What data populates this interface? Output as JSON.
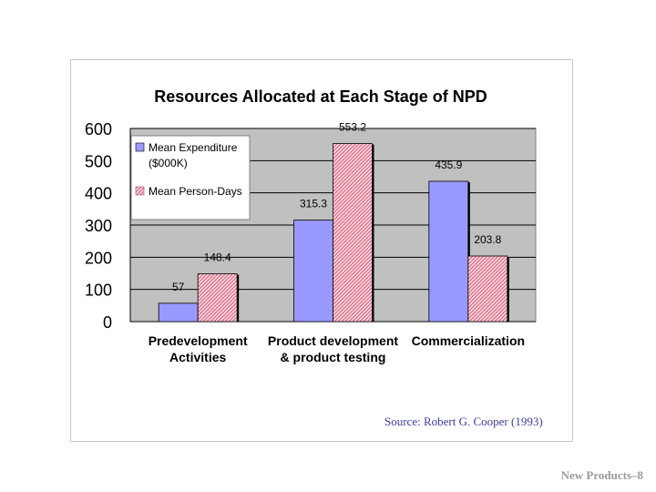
{
  "chart_data": {
    "type": "bar",
    "title": "Resources Allocated at Each Stage of NPD",
    "categories": [
      [
        "Predevelopment",
        "Activities"
      ],
      [
        "Product development",
        "& product testing"
      ],
      [
        "Commercialization"
      ]
    ],
    "series": [
      {
        "name": "Mean Expenditure ($000K)",
        "legend_lines": [
          "Mean Expenditure",
          "($000K)"
        ],
        "color": "#9999ff",
        "values": [
          57,
          315.3,
          435.9
        ],
        "labels": [
          "57",
          "315.3",
          "435.9"
        ]
      },
      {
        "name": "Mean Person-Days",
        "legend_lines": [
          "Mean Person-Days"
        ],
        "color": "#ffc0c8",
        "values": [
          148.4,
          553.2,
          203.8
        ],
        "labels": [
          "148.4",
          "553.2",
          "203.8"
        ]
      }
    ],
    "ylim": [
      0,
      600
    ],
    "yticks": [
      0,
      100,
      200,
      300,
      400,
      500,
      600
    ],
    "ytick_labels": [
      "0",
      "100",
      "200",
      "300",
      "400",
      "500",
      "600"
    ],
    "plot_background": "#c0c0c0",
    "grid": true,
    "legend_location": "top-left"
  },
  "source": "Source: Robert G. Cooper (1993)",
  "footer": "New Products–8"
}
